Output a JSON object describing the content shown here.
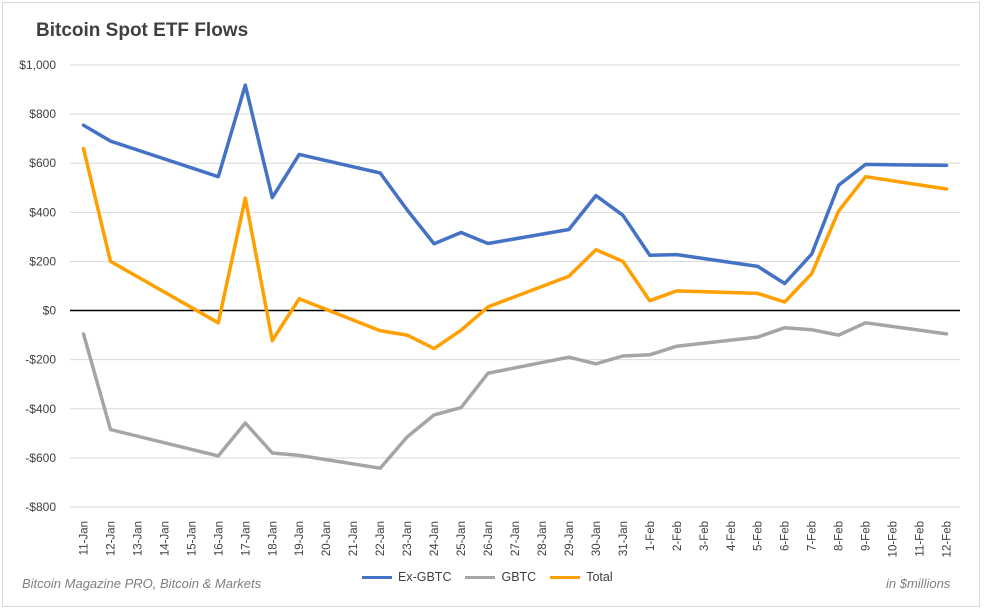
{
  "chart_data": {
    "type": "line",
    "title": "Bitcoin Spot ETF Flows",
    "categories": [
      "11-Jan",
      "12-Jan",
      "13-Jan",
      "14-Jan",
      "15-Jan",
      "16-Jan",
      "17-Jan",
      "18-Jan",
      "19-Jan",
      "20-Jan",
      "21-Jan",
      "22-Jan",
      "23-Jan",
      "24-Jan",
      "25-Jan",
      "26-Jan",
      "27-Jan",
      "28-Jan",
      "29-Jan",
      "30-Jan",
      "31-Jan",
      "1-Feb",
      "2-Feb",
      "3-Feb",
      "4-Feb",
      "5-Feb",
      "6-Feb",
      "7-Feb",
      "8-Feb",
      "9-Feb",
      "10-Feb",
      "11-Feb",
      "12-Feb"
    ],
    "series": [
      {
        "name": "Ex-GBTC",
        "color": "#4472c4",
        "values": [
          755,
          690,
          null,
          null,
          null,
          545,
          918,
          460,
          636,
          null,
          null,
          560,
          410,
          272,
          318,
          273,
          null,
          null,
          330,
          468,
          388,
          225,
          228,
          null,
          null,
          180,
          110,
          230,
          510,
          595,
          null,
          null,
          591
        ]
      },
      {
        "name": "GBTC",
        "color": "#a5a5a5",
        "values": [
          -95,
          -485,
          null,
          null,
          null,
          -592,
          -458,
          -580,
          -590,
          null,
          null,
          -642,
          -515,
          -425,
          -395,
          -255,
          null,
          null,
          -190,
          -217,
          -185,
          -180,
          -145,
          null,
          null,
          -108,
          -70,
          -78,
          -100,
          -50,
          null,
          null,
          -95
        ]
      },
      {
        "name": "Total",
        "color": "#ffa000",
        "values": [
          660,
          200,
          null,
          null,
          null,
          -50,
          458,
          -122,
          48,
          null,
          null,
          -82,
          -100,
          -155,
          -80,
          15,
          null,
          null,
          140,
          248,
          200,
          40,
          80,
          null,
          null,
          70,
          35,
          150,
          405,
          545,
          null,
          null,
          495
        ]
      }
    ],
    "ylim": [
      -800,
      1000
    ],
    "yticks": [
      1000,
      800,
      600,
      400,
      200,
      0,
      -200,
      -400,
      -600,
      -800
    ],
    "ytick_labels": [
      "$1,000",
      "$800",
      "$600",
      "$400",
      "$200",
      "$0",
      "-$200",
      "-$400",
      "-$600",
      "-$800"
    ],
    "grid": true,
    "legend": "bottom",
    "source_note": "Bitcoin Magazine PRO, Bitcoin & Markets",
    "unit_note": "in $millions"
  }
}
